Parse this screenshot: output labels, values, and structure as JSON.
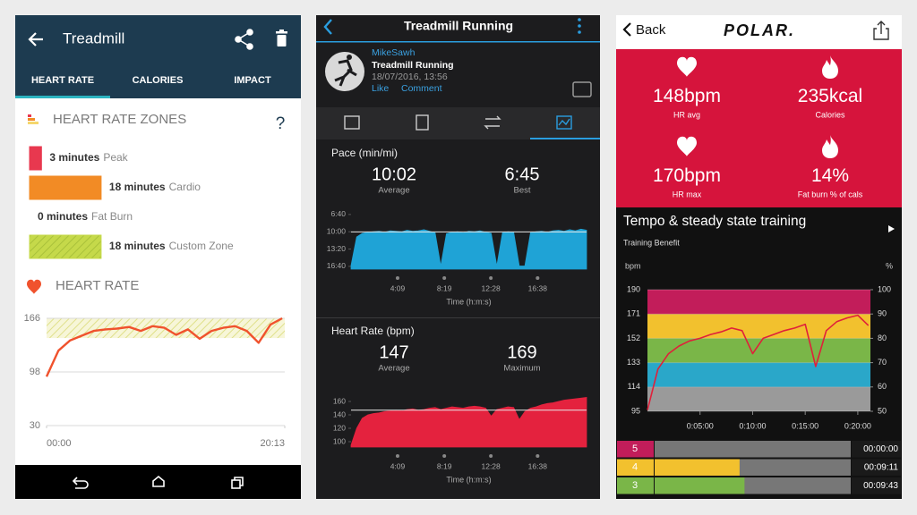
{
  "fitbit": {
    "title": "Treadmill",
    "tabs": [
      "HEART RATE",
      "CALORIES",
      "IMPACT"
    ],
    "zones_title": "HEART RATE ZONES",
    "help": "?",
    "zones": [
      {
        "minutes": 3,
        "label": "3 minutes",
        "name": "Peak",
        "color": "#e8384f"
      },
      {
        "minutes": 18,
        "label": "18 minutes",
        "name": "Cardio",
        "color": "#f28b25"
      },
      {
        "minutes": 0,
        "label": "0 minutes",
        "name": "Fat Burn",
        "color": "#f5d76e"
      },
      {
        "minutes": 18,
        "label": "18 minutes",
        "name": "Custom Zone",
        "color": "#c5d94a"
      }
    ],
    "chart": {
      "type": "line",
      "title": "HEART RATE",
      "color": "#f0522d",
      "x": [
        0,
        1,
        2,
        3,
        4,
        5,
        6,
        7,
        8,
        9,
        10,
        11,
        12,
        13,
        14,
        15,
        16,
        17,
        18,
        19,
        20
      ],
      "values": [
        92,
        125,
        138,
        144,
        150,
        152,
        153,
        155,
        150,
        156,
        154,
        145,
        152,
        140,
        150,
        154,
        156,
        150,
        135,
        158,
        166
      ],
      "xlim": [
        0,
        20.22
      ],
      "xticks": [
        {
          "value": 0,
          "label": "00:00"
        },
        {
          "value": 20.22,
          "label": "20:13"
        }
      ],
      "ylim": [
        30,
        166
      ],
      "yticks": [
        30,
        98,
        166
      ],
      "target_zone": [
        141,
        166
      ],
      "grid": true
    }
  },
  "garmin": {
    "title": "Treadmill Running",
    "user": "MikeSawh",
    "activity": "Treadmill Running",
    "date": "18/07/2016, 13:56",
    "actions": [
      "Like",
      "Comment"
    ],
    "x": [
      0,
      0.5,
      1,
      1.5,
      2,
      2.5,
      3,
      3.5,
      4,
      4.5,
      5,
      5.5,
      6,
      6.5,
      7,
      7.5,
      8,
      8.5,
      9,
      9.5,
      10,
      10.5,
      11,
      11.5,
      12,
      12.5,
      13,
      13.5,
      14,
      14.5,
      15,
      15.5,
      16,
      16.5,
      17,
      17.5,
      18,
      18.5,
      19,
      19.5,
      20,
      20.5,
      21
    ],
    "xlim": [
      0,
      21
    ],
    "xlabel": "Time (h:m:s)",
    "xticks": [
      {
        "value": 4.15,
        "label": "4:09"
      },
      {
        "value": 8.317,
        "label": "8:19"
      },
      {
        "value": 12.467,
        "label": "12:28"
      },
      {
        "value": 16.633,
        "label": "16:38"
      }
    ],
    "charts": [
      {
        "type": "area",
        "title": "Pace (min/mi)",
        "color": "#1fa3d6",
        "stats": [
          {
            "value": "10:02",
            "label": "Average"
          },
          {
            "value": "6:45",
            "label": "Best"
          }
        ],
        "average": 10.033,
        "invert": true,
        "ylim": [
          6,
          17.2
        ],
        "yticks": [
          {
            "value": 6.667,
            "label": "6:40"
          },
          {
            "value": 10,
            "label": "10:00"
          },
          {
            "value": 13.333,
            "label": "13:20"
          },
          {
            "value": 16.667,
            "label": "16:40"
          }
        ],
        "values": [
          16.5,
          11,
          10.3,
          10.1,
          10,
          9.9,
          10.1,
          9.8,
          9.9,
          10,
          9.7,
          9.9,
          9.8,
          9.6,
          9.9,
          10.2,
          16.6,
          10.4,
          10.1,
          10,
          10.2,
          9.9,
          10,
          9.8,
          10.1,
          10.3,
          16.6,
          10.2,
          10,
          10.1,
          16.6,
          16.6,
          10.2,
          10,
          9.9,
          10.1,
          9.8,
          9.7,
          9.9,
          9.6,
          9.8,
          9.5,
          9.7
        ]
      },
      {
        "type": "area",
        "title": "Heart Rate (bpm)",
        "color": "#e4223e",
        "stats": [
          {
            "value": 147,
            "label": "Average"
          },
          {
            "value": 169,
            "label": "Maximum"
          }
        ],
        "invert": false,
        "ylim": [
          92,
          172
        ],
        "yticks": [
          100,
          120,
          140,
          160
        ],
        "values": [
          95,
          120,
          135,
          140,
          142,
          143,
          145,
          146,
          147,
          146,
          148,
          149,
          147,
          148,
          150,
          151,
          148,
          150,
          152,
          151,
          150,
          152,
          153,
          152,
          150,
          138,
          148,
          150,
          152,
          151,
          133,
          145,
          150,
          152,
          155,
          157,
          158,
          160,
          162,
          163,
          164,
          165,
          166
        ]
      }
    ]
  },
  "polar": {
    "back": "Back",
    "logo": "POLAR.",
    "stats": [
      {
        "value": 148,
        "unit": "bpm",
        "label": "HR avg"
      },
      {
        "value": 235,
        "unit": "kcal",
        "label": "Calories"
      },
      {
        "value": 170,
        "unit": "bpm",
        "label": "HR max"
      },
      {
        "value": 14,
        "unit": "%",
        "label": "Fat burn % of cals"
      }
    ],
    "chart": {
      "type": "line",
      "title": "Tempo & steady state training",
      "subtitle": "Training Benefit",
      "ylabel": "bpm",
      "y2label": "%",
      "color": "#e0203a",
      "x": [
        0,
        1,
        2,
        3,
        4,
        5,
        6,
        7,
        8,
        9,
        10,
        11,
        12,
        13,
        14,
        15,
        16,
        17,
        18,
        19,
        20,
        21
      ],
      "values": [
        96,
        128,
        140,
        146,
        150,
        152,
        155,
        157,
        160,
        158,
        140,
        152,
        155,
        158,
        160,
        163,
        130,
        158,
        165,
        168,
        170,
        162
      ],
      "xlim": [
        0,
        21.2
      ],
      "xticks": [
        {
          "value": 5,
          "label": "0:05:00"
        },
        {
          "value": 10,
          "label": "0:10:00"
        },
        {
          "value": 15,
          "label": "0:15:00"
        },
        {
          "value": 20,
          "label": "0:20:00"
        }
      ],
      "ylim": [
        95,
        190
      ],
      "yticks": [
        95,
        114,
        133,
        152,
        171,
        190
      ],
      "y2lim": [
        50,
        100
      ],
      "y2ticks": [
        50,
        60,
        70,
        80,
        90,
        100
      ],
      "zone_colors": [
        "#9a9a9a",
        "#2aa7c9",
        "#7ab648",
        "#f2c12e",
        "#c21d5a"
      ]
    },
    "zones": [
      {
        "zone": 5,
        "time": "00:00:00",
        "minutes": 0,
        "color": "#c21d5a"
      },
      {
        "zone": 4,
        "time": "00:09:11",
        "minutes": 9.183,
        "color": "#f2c12e"
      },
      {
        "zone": 3,
        "time": "00:09:43",
        "minutes": 9.717,
        "color": "#7ab648"
      }
    ]
  }
}
